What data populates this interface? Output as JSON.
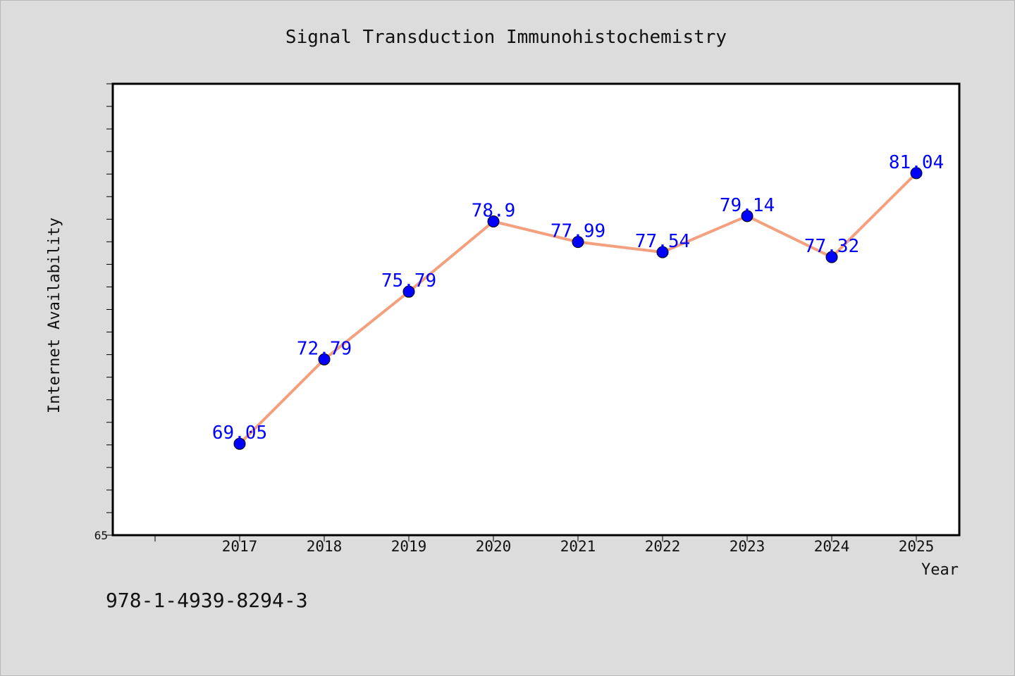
{
  "chart_data": {
    "type": "line",
    "title": "Signal Transduction Immunohistochemistry",
    "xlabel": "Year",
    "ylabel": "Internet Availability",
    "categories": [
      "2017",
      "2018",
      "2019",
      "2020",
      "2021",
      "2022",
      "2023",
      "2024",
      "2025"
    ],
    "series": [
      {
        "values": [
          69.05,
          72.79,
          75.79,
          78.9,
          77.99,
          77.54,
          79.14,
          77.32,
          81.04
        ],
        "labels": [
          "69.05",
          "72.79",
          "75.79",
          "78.9",
          "77.99",
          "77.54",
          "79.14",
          "77.32",
          "81.04"
        ]
      }
    ],
    "ylim": [
      65,
      85
    ],
    "y_tick_label": "65",
    "grid": false,
    "legend": "none",
    "colors": {
      "line": "#f4a07e",
      "marker": "#0000ff",
      "data_label": "#0000ff",
      "background": "#dcdcdc",
      "plot_area": "#ffffff"
    }
  },
  "footer": {
    "isbn": "978-1-4939-8294-3"
  }
}
